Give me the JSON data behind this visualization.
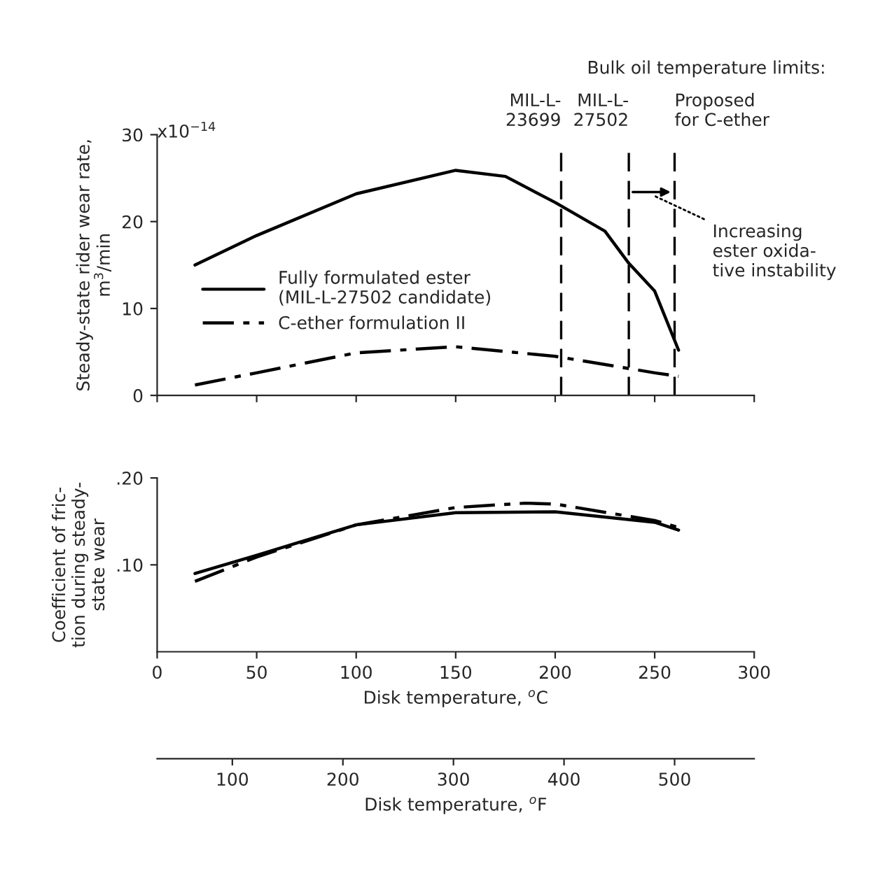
{
  "chart_data": [
    {
      "type": "line",
      "ylabel": "Steady-state rider wear rate,\nm$^{3}$/min",
      "x": [
        19,
        50,
        100,
        150,
        175,
        200,
        225,
        237,
        250,
        262
      ],
      "series": [
        {
          "name": "Fully formulated ester\n(MIL-L-27502 candidate)",
          "color": "#000000",
          "line_style": "solid",
          "values": [
            15,
            18.4,
            23.2,
            25.9,
            25.2,
            22.2,
            18.9,
            15.2,
            12,
            5.2
          ]
        },
        {
          "name": "C-ether formulation II",
          "color": "#000000",
          "line_style": "dashdot",
          "x": [
            19,
            50,
            100,
            150,
            200,
            250,
            262
          ],
          "values": [
            1.2,
            2.6,
            4.9,
            5.6,
            4.5,
            2.6,
            2.2
          ]
        }
      ],
      "xlim": [
        0,
        300
      ],
      "xticks": [
        0,
        50,
        100,
        150,
        200,
        250,
        300
      ],
      "ylim": [
        0,
        30
      ],
      "yticks": [
        0,
        10,
        20,
        30
      ],
      "tick_labels": "y",
      "legend": "left",
      "grid": false,
      "ref_lines": [
        {
          "axis": "x",
          "value": 203,
          "label": "MIL-L-\n23699",
          "line_style": "dashed"
        },
        {
          "axis": "x",
          "value": 237,
          "label": "MIL-L-\n27502",
          "line_style": "dashed"
        },
        {
          "axis": "x",
          "value": 260,
          "label": "Proposed\nfor C-ether",
          "line_style": "dashed"
        }
      ],
      "annotations": [
        "x10$^{−14}$",
        "Bulk oil temperature limits:",
        "Increasing\nester oxida-\ntive instability"
      ]
    },
    {
      "type": "line",
      "ylabel": "Coefficient of fric-\ntion during steady-\nstate wear",
      "xlabel": "Disk temperature, $^{o}$C",
      "x": [
        19,
        50,
        100,
        150,
        185,
        200,
        250,
        262
      ],
      "series": [
        {
          "color": "#000000",
          "line_style": "solid",
          "x": [
            19,
            50,
            100,
            150,
            200,
            250,
            262
          ],
          "values": [
            0.09,
            0.111,
            0.146,
            0.16,
            0.161,
            0.149,
            0.14
          ]
        },
        {
          "color": "#000000",
          "line_style": "dashdot",
          "values": [
            0.081,
            0.109,
            0.146,
            0.166,
            0.171,
            0.17,
            0.151,
            0.143
          ]
        }
      ],
      "xlim": [
        0,
        300
      ],
      "xticks": [
        0,
        50,
        100,
        150,
        200,
        250,
        300
      ],
      "ylim": [
        0,
        0.2
      ],
      "yticks": [
        {
          "value": 0.1,
          "label": ".10"
        },
        {
          "value": 0.2,
          "label": ".20"
        }
      ],
      "grid": false,
      "x2lim": [
        32,
        572
      ],
      "x2ticks": [
        100,
        200,
        300,
        400,
        500
      ],
      "x2label": "Disk temperature, $^{o}$F"
    }
  ]
}
